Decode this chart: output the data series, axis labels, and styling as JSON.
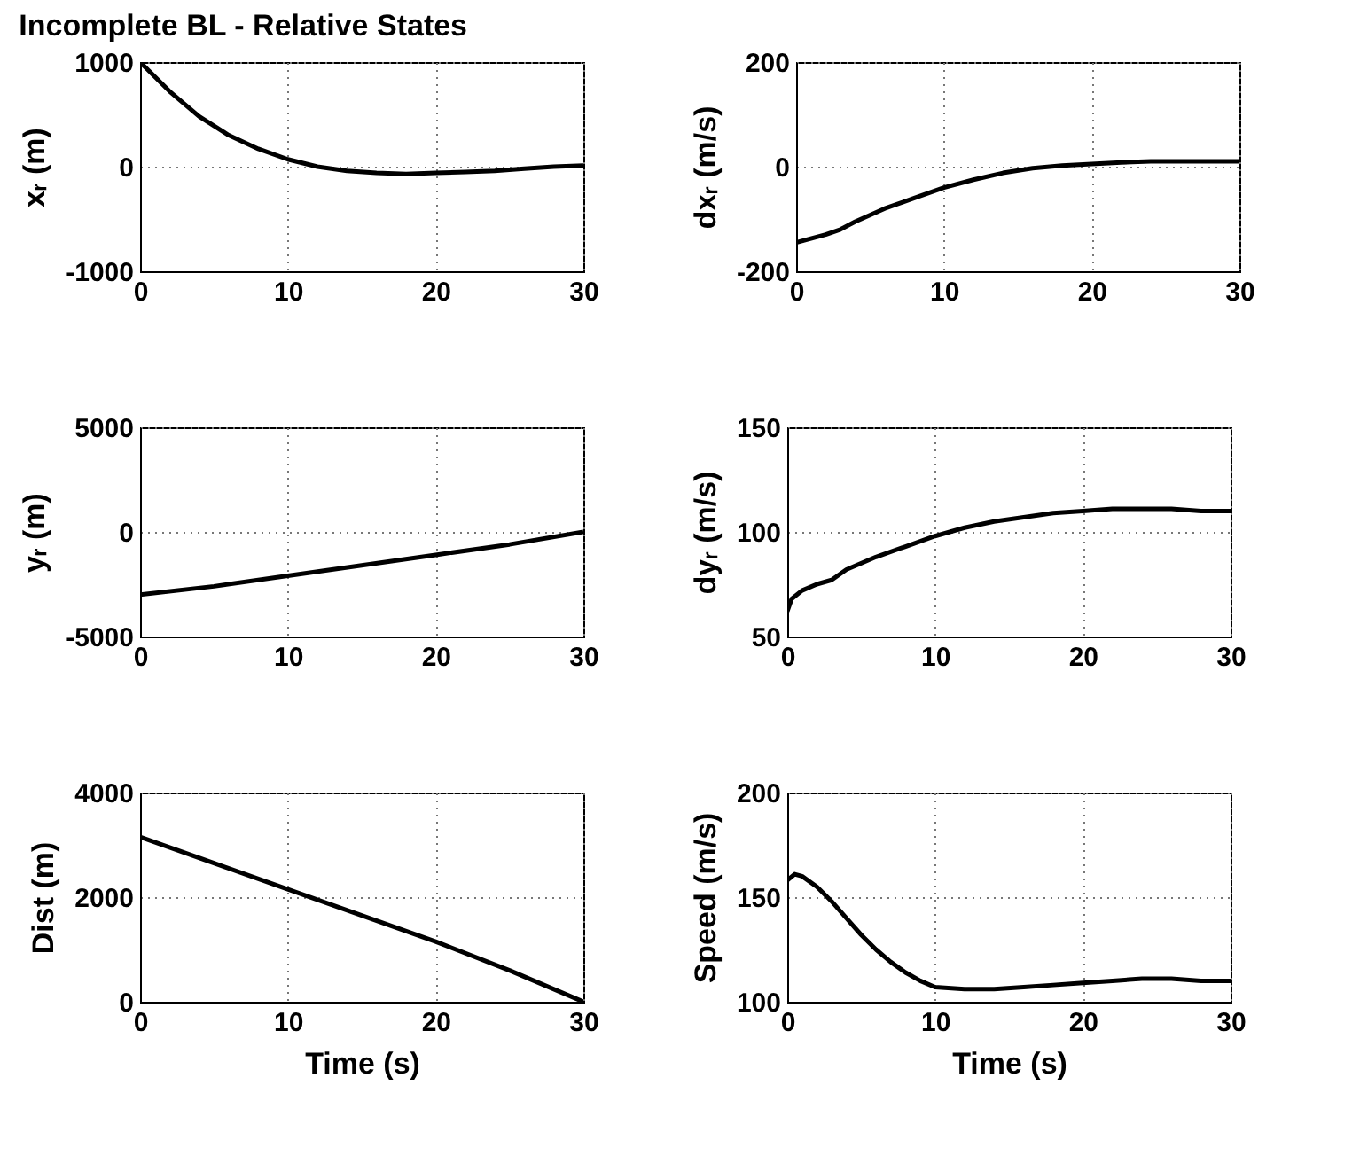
{
  "chart_data": [
    {
      "type": "line",
      "title": "Incomplete BL - Relative States",
      "ylabel": "xᵣ (m)",
      "x": [
        0,
        2,
        4,
        6,
        8,
        10,
        12,
        14,
        16,
        18,
        20,
        22,
        24,
        26,
        28,
        30
      ],
      "values": [
        1000,
        720,
        480,
        300,
        170,
        70,
        0,
        -40,
        -60,
        -70,
        -60,
        -50,
        -40,
        -20,
        0,
        10
      ],
      "color": "#000000",
      "xlim": [
        0,
        30
      ],
      "ylim": [
        -1000,
        1000
      ],
      "xticks": [
        0,
        10,
        20,
        30
      ],
      "yticks": [
        -1000,
        0,
        1000
      ],
      "grid": true
    },
    {
      "type": "line",
      "ylabel": "dxᵣ (m/s)",
      "x": [
        0,
        2,
        3,
        4,
        6,
        8,
        10,
        12,
        14,
        16,
        18,
        20,
        22,
        24,
        26,
        28,
        30
      ],
      "values": [
        -145,
        -130,
        -120,
        -105,
        -80,
        -60,
        -40,
        -25,
        -12,
        -3,
        2,
        5,
        8,
        10,
        10,
        10,
        10
      ],
      "color": "#000000",
      "xlim": [
        0,
        30
      ],
      "ylim": [
        -200,
        200
      ],
      "xticks": [
        0,
        10,
        20,
        30
      ],
      "yticks": [
        -200,
        0,
        200
      ],
      "grid": true
    },
    {
      "type": "line",
      "ylabel": "yᵣ (m)",
      "x": [
        0,
        5,
        10,
        15,
        20,
        25,
        30
      ],
      "values": [
        -3000,
        -2600,
        -2100,
        -1600,
        -1100,
        -600,
        0
      ],
      "color": "#000000",
      "xlim": [
        0,
        30
      ],
      "ylim": [
        -5000,
        5000
      ],
      "xticks": [
        0,
        10,
        20,
        30
      ],
      "yticks": [
        -5000,
        0,
        5000
      ],
      "grid": true
    },
    {
      "type": "line",
      "ylabel": "dyᵣ (m/s)",
      "x": [
        0,
        0.3,
        1,
        2,
        3,
        4,
        6,
        8,
        10,
        12,
        14,
        16,
        18,
        20,
        22,
        24,
        26,
        28,
        30
      ],
      "values": [
        62,
        68,
        72,
        75,
        77,
        82,
        88,
        93,
        98,
        102,
        105,
        107,
        109,
        110,
        111,
        111,
        111,
        110,
        110
      ],
      "color": "#000000",
      "xlim": [
        0,
        30
      ],
      "ylim": [
        50,
        150
      ],
      "xticks": [
        0,
        10,
        20,
        30
      ],
      "yticks": [
        50,
        100,
        150
      ],
      "grid": true
    },
    {
      "type": "line",
      "xlabel": "Time (s)",
      "ylabel": "Dist (m)",
      "x": [
        0,
        5,
        10,
        15,
        20,
        25,
        30
      ],
      "values": [
        3150,
        2650,
        2150,
        1650,
        1150,
        600,
        0
      ],
      "color": "#000000",
      "xlim": [
        0,
        30
      ],
      "ylim": [
        0,
        4000
      ],
      "xticks": [
        0,
        10,
        20,
        30
      ],
      "yticks": [
        0,
        2000,
        4000
      ],
      "grid": true
    },
    {
      "type": "line",
      "xlabel": "Time (s)",
      "ylabel": "Speed (m/s)",
      "x": [
        0,
        0.5,
        1,
        2,
        3,
        4,
        5,
        6,
        7,
        8,
        9,
        10,
        12,
        14,
        16,
        18,
        20,
        22,
        24,
        26,
        28,
        30
      ],
      "values": [
        158,
        161,
        160,
        155,
        148,
        140,
        132,
        125,
        119,
        114,
        110,
        107,
        106,
        106,
        107,
        108,
        109,
        110,
        111,
        111,
        110,
        110
      ],
      "color": "#000000",
      "xlim": [
        0,
        30
      ],
      "ylim": [
        100,
        200
      ],
      "xticks": [
        0,
        10,
        20,
        30
      ],
      "yticks": [
        100,
        150,
        200
      ],
      "grid": true
    }
  ]
}
